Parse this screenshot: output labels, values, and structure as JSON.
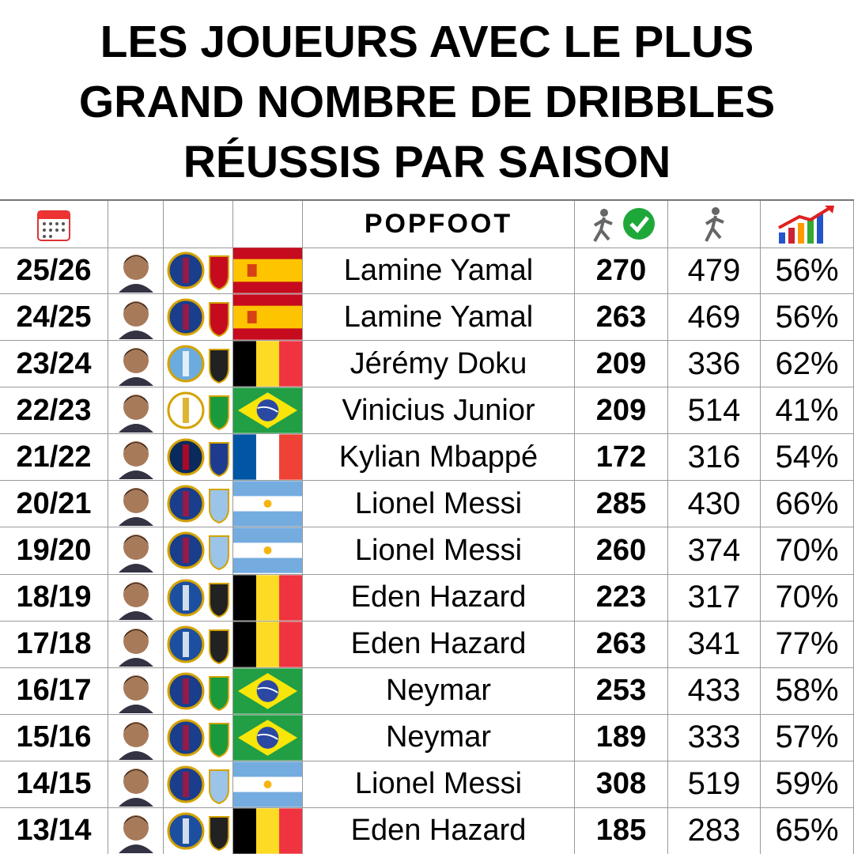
{
  "header": {
    "title": "LES JOUEURS AVEC LE PLUS GRAND NOMBRE DE DRIBBLES RÉUSSIS PAR SAISON",
    "logo": "POPFOOT"
  },
  "table": {
    "rows": [
      [
        "25/26",
        "Lamine Yamal",
        "270",
        "479",
        "56%"
      ],
      [
        "24/25",
        "Lamine Yamal",
        "263",
        "469",
        "56%"
      ],
      [
        "23/24",
        "Jérémy Doku",
        "209",
        "336",
        "62%"
      ],
      [
        "22/23",
        "Vinicius Junior",
        "209",
        "514",
        "41%"
      ],
      [
        "21/22",
        "Kylian Mbappé",
        "172",
        "316",
        "54%"
      ],
      [
        "20/21",
        "Lionel Messi",
        "285",
        "430",
        "66%"
      ],
      [
        "19/20",
        "Lionel Messi",
        "260",
        "374",
        "70%"
      ],
      [
        "18/19",
        "Eden Hazard",
        "223",
        "317",
        "70%"
      ],
      [
        "17/18",
        "Eden Hazard",
        "263",
        "341",
        "77%"
      ],
      [
        "16/17",
        "Neymar",
        "253",
        "433",
        "58%"
      ],
      [
        "15/16",
        "Neymar",
        "189",
        "333",
        "57%"
      ],
      [
        "14/15",
        "Lionel Messi",
        "308",
        "519",
        "59%"
      ],
      [
        "13/14",
        "Eden Hazard",
        "185",
        "283",
        "65%"
      ]
    ]
  }
}
